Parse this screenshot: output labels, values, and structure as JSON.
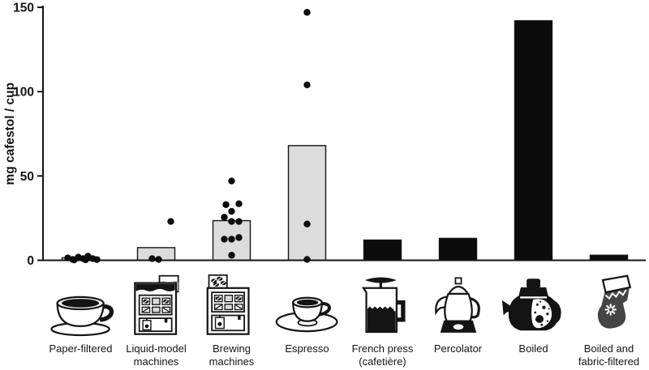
{
  "figure": {
    "ylabel": "mg cafestol / cup"
  },
  "chart_data": {
    "type": "bar",
    "subtype": "bar-with-scatter-overlay",
    "title": "",
    "xlabel": "",
    "ylabel": "mg cafestol / cup",
    "ylim": [
      0,
      150
    ],
    "yticks": [
      0,
      50,
      100,
      150
    ],
    "grid": false,
    "legend": "none",
    "bar_colors": {
      "light": "#dcdcdc",
      "dark": "#0b0b0b"
    },
    "point_color": "#0b0b0b",
    "axis_color": "#141414",
    "categories": [
      {
        "label": "Paper-filtered",
        "icon": "cup-and-saucer-icon",
        "bar": 1.5,
        "fill": "light",
        "points": [
          {
            "v": 1.4,
            "dx": -16
          },
          {
            "v": 0.5,
            "dx": -10
          },
          {
            "v": 1.9,
            "dx": -3
          },
          {
            "v": 1.0,
            "dx": 3
          },
          {
            "v": 2.4,
            "dx": 9
          },
          {
            "v": 1.0,
            "dx": 15
          },
          {
            "v": 0.4,
            "dx": 20
          },
          {
            "v": 0.2,
            "dx": -8
          },
          {
            "v": 0.3,
            "dx": 6
          }
        ]
      },
      {
        "label": "Liquid-model\nmachines",
        "icon": "liquid-model-machine-icon",
        "bar": 7.5,
        "fill": "light",
        "points": [
          {
            "v": 23,
            "dx": 18
          },
          {
            "v": 1,
            "dx": -5
          },
          {
            "v": 0.5,
            "dx": 3
          }
        ]
      },
      {
        "label": "Brewing\nmachines",
        "icon": "brewing-machine-icon",
        "bar": 23.5,
        "fill": "light",
        "points": [
          {
            "v": 47,
            "dx": 0
          },
          {
            "v": 33,
            "dx": -7
          },
          {
            "v": 33.5,
            "dx": 9
          },
          {
            "v": 29,
            "dx": 0
          },
          {
            "v": 25.5,
            "dx": -9
          },
          {
            "v": 23,
            "dx": 0
          },
          {
            "v": 23,
            "dx": 9
          },
          {
            "v": 12.5,
            "dx": -9
          },
          {
            "v": 12.5,
            "dx": 0
          },
          {
            "v": 13.5,
            "dx": 9
          },
          {
            "v": 3,
            "dx": 0
          }
        ]
      },
      {
        "label": "Espresso",
        "icon": "espresso-cup-icon",
        "bar": 68,
        "fill": "light",
        "points": [
          {
            "v": 147,
            "dx": 0
          },
          {
            "v": 104,
            "dx": 0
          },
          {
            "v": 21.5,
            "dx": 0
          },
          {
            "v": 0.5,
            "dx": 0
          }
        ]
      },
      {
        "label": "French press\n(cafetière)",
        "icon": "french-press-icon",
        "bar": 12,
        "fill": "dark",
        "points": []
      },
      {
        "label": "Percolator",
        "icon": "percolator-icon",
        "bar": 13,
        "fill": "dark",
        "points": []
      },
      {
        "label": "Boiled",
        "icon": "boiled-pot-icon",
        "bar": 142,
        "fill": "dark",
        "points": []
      },
      {
        "label": "Boiled and\nfabric-filtered",
        "icon": "fabric-sock-icon",
        "bar": 3,
        "fill": "dark",
        "points": []
      }
    ]
  }
}
